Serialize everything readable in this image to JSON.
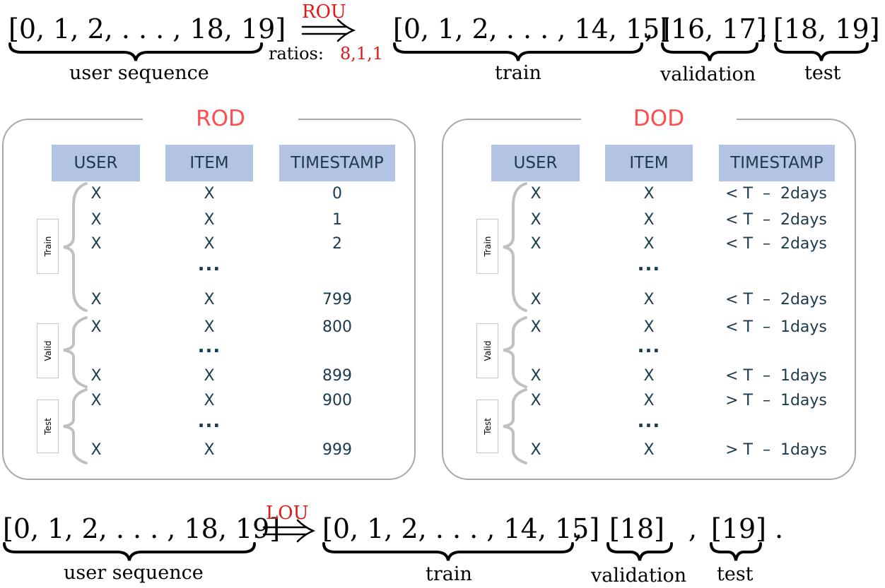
{
  "top_equation": {
    "input_seq": "[0, 1, 2, . . . , 18, 19]",
    "input_label": "user sequence",
    "arrow_label": "ROU",
    "ratios_label": "ratios:",
    "ratios_value": "8,1,1",
    "train_seq": "[0, 1, 2, . . . , 14, 15]",
    "sep1": ",",
    "val_seq": "[16, 17]",
    "sep2": ",",
    "test_seq": "[18, 19]",
    "end": ".",
    "train_label": "train",
    "val_label": "validation",
    "test_label": "test"
  },
  "panels": [
    {
      "title": "ROD",
      "headers": [
        "USER",
        "ITEM",
        "TIMESTAMP"
      ],
      "rows": [
        [
          "X",
          "X",
          "0"
        ],
        [
          "X",
          "X",
          "1"
        ],
        [
          "X",
          "X",
          "2"
        ],
        [
          "X",
          "X",
          "799"
        ],
        [
          "X",
          "X",
          "800"
        ],
        [
          "X",
          "X",
          "899"
        ],
        [
          "X",
          "X",
          "900"
        ],
        [
          "X",
          "X",
          "999"
        ]
      ],
      "dots": [
        "...",
        "...",
        "..."
      ],
      "splits": [
        "Train",
        "Valid",
        "Test"
      ]
    },
    {
      "title": "DOD",
      "headers": [
        "USER",
        "ITEM",
        "TIMESTAMP"
      ],
      "rows": [
        [
          "X",
          "X",
          "< T  –  2days"
        ],
        [
          "X",
          "X",
          "< T  –  2days"
        ],
        [
          "X",
          "X",
          "< T  –  2days"
        ],
        [
          "X",
          "X",
          "< T  –  2days"
        ],
        [
          "X",
          "X",
          "< T  –  1days"
        ],
        [
          "X",
          "X",
          "< T  –  1days"
        ],
        [
          "X",
          "X",
          "> T  –  1days"
        ],
        [
          "X",
          "X",
          "> T  –  1days"
        ]
      ],
      "dots": [
        "...",
        "...",
        "..."
      ],
      "splits": [
        "Train",
        "Valid",
        "Test"
      ]
    }
  ],
  "bottom_equation": {
    "input_seq": "[0, 1, 2, . . . , 18, 19]",
    "input_label": "user sequence",
    "arrow_label": "LOU",
    "train_seq": "[0, 1, 2, . . . , 14, 15]",
    "sep1": ",",
    "val_seq": "[18]",
    "sep2": ",",
    "test_seq": "[19]",
    "end": ".",
    "train_label": "train",
    "val_label": "validation",
    "test_label": "test"
  },
  "colors": {
    "accent_red": "#e01818",
    "panel_title": "#ff4d4d",
    "header_fill": "#b3c3e3",
    "cell_text": "#1b3b4d",
    "border": "#a8a8a8"
  }
}
